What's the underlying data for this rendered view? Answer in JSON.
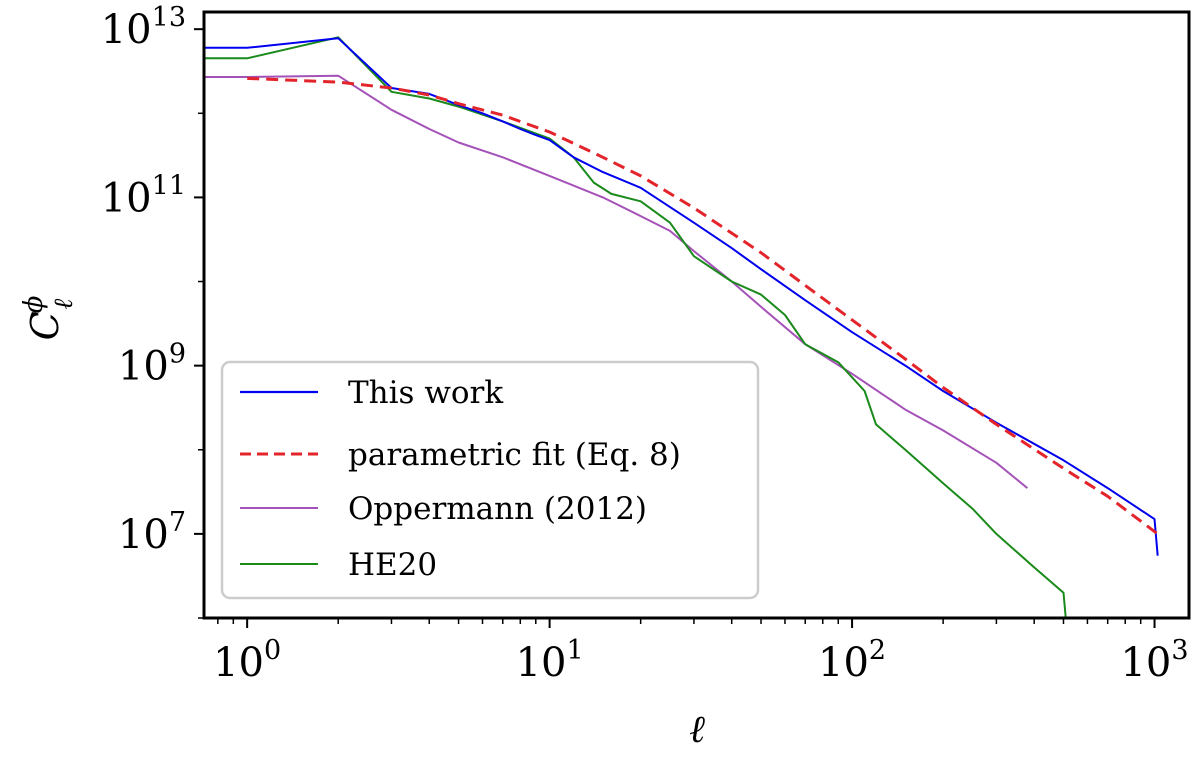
{
  "chart_data": {
    "type": "line",
    "xscale": "log",
    "yscale": "log",
    "xlim": [
      0.72,
      1300
    ],
    "ylim": [
      1000000,
      16000000000000
    ],
    "xlabel": "ℓ",
    "ylabel": {
      "base": "C",
      "superscript": "ϕ",
      "subscript": "ℓ"
    },
    "x_ticks": [
      {
        "value": 1,
        "base": "10",
        "exp": "0"
      },
      {
        "value": 10,
        "base": "10",
        "exp": "1"
      },
      {
        "value": 100,
        "base": "10",
        "exp": "2"
      },
      {
        "value": 1000,
        "base": "10",
        "exp": "3"
      }
    ],
    "y_ticks": [
      {
        "value": 10000000,
        "base": "10",
        "exp": "7"
      },
      {
        "value": 1000000000,
        "base": "10",
        "exp": "9"
      },
      {
        "value": 100000000000,
        "base": "10",
        "exp": "11"
      },
      {
        "value": 10000000000000,
        "base": "10",
        "exp": "13"
      }
    ],
    "legend": {
      "location": "lower-left",
      "entries": [
        {
          "label": "This work",
          "color": "#0000ee",
          "style": "solid"
        },
        {
          "label": "parametric fit (Eq. 8)",
          "color": "#e3242b",
          "style": "dashed"
        },
        {
          "label": "Oppermann (2012)",
          "color": "#a552b8",
          "style": "solid"
        },
        {
          "label": "HE20",
          "color": "#1a8a1a",
          "style": "solid"
        }
      ]
    },
    "series": [
      {
        "name": "This work",
        "color": "#0000ee",
        "points": [
          [
            0.72,
            6000000000000
          ],
          [
            1,
            6000000000000
          ],
          [
            2,
            7800000000000
          ],
          [
            3,
            2000000000000
          ],
          [
            4,
            1700000000000
          ],
          [
            5,
            1250000000000
          ],
          [
            6,
            1000000000000
          ],
          [
            7,
            800000000000
          ],
          [
            8,
            650000000000
          ],
          [
            9,
            550000000000
          ],
          [
            10,
            480000000000
          ],
          [
            12,
            300000000000
          ],
          [
            15,
            200000000000
          ],
          [
            20,
            130000000000
          ],
          [
            30,
            50000000000
          ],
          [
            40,
            25000000000
          ],
          [
            50,
            14000000000
          ],
          [
            70,
            6000000000
          ],
          [
            100,
            2500000000
          ],
          [
            150,
            1000000000
          ],
          [
            200,
            500000000
          ],
          [
            300,
            210000000
          ],
          [
            500,
            75000000
          ],
          [
            700,
            35000000
          ],
          [
            1000,
            15000000
          ],
          [
            1024,
            5500000
          ]
        ]
      },
      {
        "name": "parametric fit (Eq. 8)",
        "color": "#e3242b",
        "points": [
          [
            1,
            2600000000000
          ],
          [
            2,
            2350000000000
          ],
          [
            3,
            2000000000000
          ],
          [
            4,
            1650000000000
          ],
          [
            5,
            1300000000000
          ],
          [
            7,
            950000000000
          ],
          [
            10,
            600000000000
          ],
          [
            15,
            300000000000
          ],
          [
            20,
            180000000000
          ],
          [
            30,
            75000000000
          ],
          [
            50,
            22000000000
          ],
          [
            70,
            9000000000
          ],
          [
            100,
            3500000000
          ],
          [
            150,
            1200000000
          ],
          [
            200,
            550000000
          ],
          [
            300,
            200000000
          ],
          [
            500,
            60000000
          ],
          [
            700,
            28000000
          ],
          [
            1024,
            10000000
          ]
        ]
      },
      {
        "name": "Oppermann (2012)",
        "color": "#a552b8",
        "points": [
          [
            0.72,
            2700000000000
          ],
          [
            1,
            2700000000000
          ],
          [
            2,
            2800000000000
          ],
          [
            3,
            1100000000000
          ],
          [
            4,
            650000000000
          ],
          [
            5,
            450000000000
          ],
          [
            7,
            300000000000
          ],
          [
            10,
            180000000000
          ],
          [
            15,
            100000000000
          ],
          [
            20,
            60000000000
          ],
          [
            25,
            40000000000
          ],
          [
            30,
            23000000000
          ],
          [
            40,
            10000000000
          ],
          [
            50,
            5000000000
          ],
          [
            70,
            1800000000
          ],
          [
            100,
            800000000
          ],
          [
            150,
            300000000
          ],
          [
            200,
            170000000
          ],
          [
            300,
            70000000
          ],
          [
            380,
            35000000
          ]
        ]
      },
      {
        "name": "HE20",
        "color": "#1a8a1a",
        "points": [
          [
            0.72,
            4500000000000
          ],
          [
            1,
            4500000000000
          ],
          [
            2,
            8000000000000
          ],
          [
            3,
            1800000000000
          ],
          [
            4,
            1500000000000
          ],
          [
            5,
            1200000000000
          ],
          [
            7,
            800000000000
          ],
          [
            10,
            500000000000
          ],
          [
            12,
            300000000000
          ],
          [
            14,
            150000000000
          ],
          [
            16,
            110000000000
          ],
          [
            20,
            90000000000
          ],
          [
            25,
            50000000000
          ],
          [
            30,
            20000000000
          ],
          [
            40,
            10000000000
          ],
          [
            50,
            7000000000
          ],
          [
            60,
            4000000000
          ],
          [
            70,
            1800000000
          ],
          [
            90,
            1100000000
          ],
          [
            110,
            500000000
          ],
          [
            120,
            200000000
          ],
          [
            150,
            100000000
          ],
          [
            200,
            40000000
          ],
          [
            250,
            20000000
          ],
          [
            300,
            10000000
          ],
          [
            400,
            4000000
          ],
          [
            500,
            2000000
          ],
          [
            510,
            900000
          ]
        ]
      }
    ]
  }
}
